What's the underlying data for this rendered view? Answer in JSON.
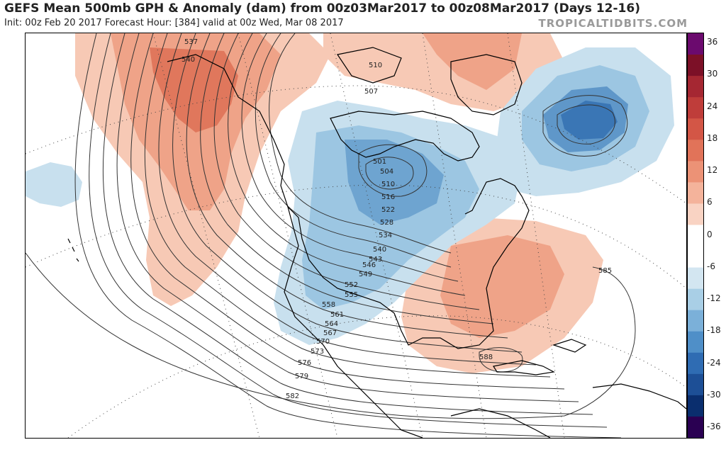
{
  "header": {
    "title": "GEFS Mean 500mb GPH & Anomaly (dam) from 00z03Mar2017 to 00z08Mar2017 (Days 12-16)",
    "subtitle": "Init: 00z Feb 20 2017   Forecast Hour: [384]   valid at 00z Wed, Mar 08 2017",
    "brand": "TROPICALTIDBITS.COM"
  },
  "colorbar": {
    "labels": [
      "36",
      "30",
      "24",
      "18",
      "12",
      "6",
      "0",
      "-6",
      "-12",
      "-18",
      "-24",
      "-30",
      "-36"
    ],
    "colors": [
      "#2a0052",
      "#0a2e6e",
      "#1d4f96",
      "#2f6cb3",
      "#4f8fc8",
      "#7bb0d9",
      "#a9cfe6",
      "#d3e6f1",
      "#ffffff",
      "#ffffff",
      "#f9d3c3",
      "#f4b39b",
      "#ec9276",
      "#e17359",
      "#d35646",
      "#bf3d3a",
      "#a52732",
      "#7c1027",
      "#6b0a6e"
    ]
  },
  "contour_labels": [
    "537",
    "540",
    "510",
    "507",
    "501",
    "504",
    "510",
    "516",
    "522",
    "528",
    "534",
    "540",
    "543",
    "546",
    "549",
    "552",
    "555",
    "558",
    "561",
    "564",
    "567",
    "570",
    "573",
    "576",
    "579",
    "582",
    "585",
    "588"
  ],
  "map_elements": {
    "ocean_color": "#ffffff",
    "warm_anomaly_color": "#f2a98f",
    "cold_anomaly_color": "#7fb3d8"
  }
}
